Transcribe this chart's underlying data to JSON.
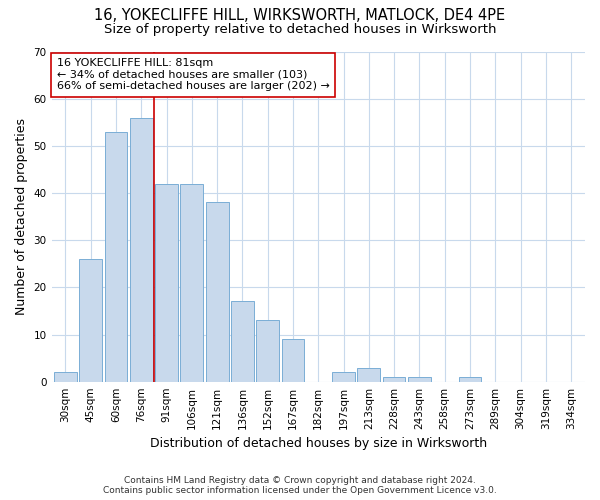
{
  "title_line1": "16, YOKECLIFFE HILL, WIRKSWORTH, MATLOCK, DE4 4PE",
  "title_line2": "Size of property relative to detached houses in Wirksworth",
  "xlabel": "Distribution of detached houses by size in Wirksworth",
  "ylabel": "Number of detached properties",
  "categories": [
    "30sqm",
    "45sqm",
    "60sqm",
    "76sqm",
    "91sqm",
    "106sqm",
    "121sqm",
    "136sqm",
    "152sqm",
    "167sqm",
    "182sqm",
    "197sqm",
    "213sqm",
    "228sqm",
    "243sqm",
    "258sqm",
    "273sqm",
    "289sqm",
    "304sqm",
    "319sqm",
    "334sqm"
  ],
  "values": [
    2,
    26,
    53,
    56,
    42,
    42,
    38,
    17,
    13,
    9,
    0,
    2,
    3,
    1,
    1,
    0,
    1,
    0,
    0,
    0,
    0
  ],
  "bar_color": "#c8d9ec",
  "bar_edge_color": "#7aaed6",
  "background_color": "#ffffff",
  "plot_bg_color": "#ffffff",
  "grid_color": "#c8d9ec",
  "vline_x": 3.5,
  "vline_color": "#cc0000",
  "annotation_text": "16 YOKECLIFFE HILL: 81sqm\n← 34% of detached houses are smaller (103)\n66% of semi-detached houses are larger (202) →",
  "annotation_box_color": "#ffffff",
  "annotation_box_edge_color": "#cc0000",
  "ylim": [
    0,
    70
  ],
  "yticks": [
    0,
    10,
    20,
    30,
    40,
    50,
    60,
    70
  ],
  "footer_line1": "Contains HM Land Registry data © Crown copyright and database right 2024.",
  "footer_line2": "Contains public sector information licensed under the Open Government Licence v3.0.",
  "title_fontsize": 10.5,
  "subtitle_fontsize": 9.5,
  "axis_label_fontsize": 9,
  "tick_fontsize": 7.5,
  "annotation_fontsize": 8,
  "footer_fontsize": 6.5
}
